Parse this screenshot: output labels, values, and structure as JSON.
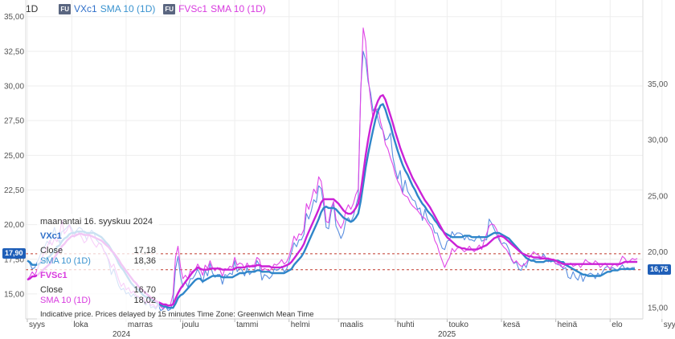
{
  "legend": {
    "interval": "1D",
    "badge": "FU",
    "s1_name": "VXc1",
    "s1_sma": "SMA 10 (1D)",
    "s2_name": "FVSc1",
    "s2_sma": "SMA 10 (1D)"
  },
  "colors": {
    "vx": "#5b8fe0",
    "vx_sma": "#2f86c9",
    "fvs": "#e046e6",
    "fvs_sma": "#cc22d6",
    "refline": "#c0392b",
    "pill_left": "#1f5fb8",
    "pill_right": "#1f5fb8"
  },
  "pills": {
    "left": "17,90",
    "right": "16,75"
  },
  "tooltip": {
    "date": "maanantai 16. syyskuu 2024",
    "s1_title": "VXc1",
    "close_label": "Close",
    "s1_close": "17,18",
    "s1_sma_label": "SMA 10 (1D)",
    "s1_sma": "18,36",
    "s2_title": "FVSc1",
    "s2_close": "16,70",
    "s2_sma_label": "SMA 10 (1D)",
    "s2_sma": "18,02"
  },
  "footer": {
    "note": "Indicative price. Prices delayed by 15 minutes   Time Zone: Greenwich Mean Time",
    "year1": "2024",
    "year2": "2025"
  },
  "chart_data": {
    "type": "line",
    "left_axis": {
      "ylim": [
        13.2,
        36.2
      ],
      "ticks": [
        "15,00",
        "17,50",
        "20,00",
        "22,50",
        "25,00",
        "27,50",
        "30,00",
        "32,50",
        "35,00"
      ],
      "tick_values": [
        15,
        17.5,
        20,
        22.5,
        25,
        27.5,
        30,
        32.5,
        35
      ]
    },
    "right_axis": {
      "ylim": [
        14.0,
        42.5
      ],
      "ticks": [
        "15,00",
        "20,00",
        "25,00",
        "30,00",
        "35,00"
      ],
      "tick_values": [
        15,
        20,
        25,
        30,
        35
      ]
    },
    "x_ticks": [
      "syys",
      "loka",
      "marras",
      "joulu",
      "tammi",
      "helmi",
      "maalis",
      "huhti",
      "touko",
      "kesä",
      "heinä",
      "elo",
      "syys"
    ],
    "x_tick_index": [
      0,
      18,
      40,
      62,
      84,
      106,
      126,
      149,
      170,
      192,
      214,
      236,
      257
    ],
    "ref_lines": [
      17.9,
      16.75
    ],
    "series": [
      {
        "name": "VXc1",
        "axis": "left",
        "values": [
          17.4,
          17.2,
          16.8,
          16.9,
          17.3,
          17.7,
          18.2,
          18.4,
          18.8,
          18.6,
          19.2,
          19.8,
          19.1,
          18.7,
          19.5,
          19.6,
          19.8,
          20.0,
          19.7,
          19.3,
          19.6,
          19.8,
          19.7,
          19.4,
          18.9,
          19.3,
          19.6,
          19.4,
          18.9,
          18.7,
          18.6,
          18.1,
          17.9,
          17.3,
          16.4,
          16.8,
          16.2,
          15.6,
          15.3,
          15.4,
          15.0,
          15.1,
          14.8,
          15.0,
          14.7,
          14.8,
          14.6,
          14.5,
          14.2,
          14.5,
          14.0,
          14.1,
          13.9,
          14.2,
          13.8,
          13.9,
          14.1,
          13.8,
          13.9,
          14.4,
          16.8,
          17.7,
          16.3,
          15.5,
          15.9,
          15.5,
          16.1,
          16.1,
          16.4,
          16.8,
          16.4,
          15.8,
          16.7,
          16.3,
          17.2,
          16.5,
          16.2,
          16.4,
          16.4,
          15.7,
          16.4,
          16.3,
          16.5,
          16.4,
          17.4,
          16.6,
          16.9,
          16.7,
          16.3,
          16.9,
          16.4,
          16.6,
          16.7,
          17.4,
          17.1,
          16.0,
          16.4,
          16.3,
          16.1,
          16.3,
          16.8,
          16.7,
          16.8,
          17.0,
          16.6,
          16.8,
          17.4,
          18.0,
          18.7,
          18.4,
          18.9,
          18.9,
          19.3,
          20.8,
          20.4,
          21.0,
          21.8,
          21.6,
          22.8,
          22.6,
          21.4,
          19.8,
          19.7,
          20.9,
          21.5,
          19.9,
          19.5,
          19.0,
          19.4,
          20.3,
          20.5,
          20.2,
          20.6,
          21.3,
          22.0,
          29.8,
          32.5,
          31.9,
          30.3,
          29.5,
          28.2,
          28.5,
          27.6,
          27.0,
          26.8,
          26.1,
          26.2,
          26.6,
          24.9,
          24.0,
          23.3,
          23.9,
          22.3,
          23.2,
          22.4,
          22.1,
          21.8,
          21.7,
          21.1,
          21.2,
          20.3,
          21.1,
          20.4,
          20.1,
          20.0,
          19.4,
          19.4,
          18.8,
          18.3,
          18.2,
          18.8,
          18.9,
          19.5,
          19.2,
          19.4,
          19.4,
          19.3,
          18.9,
          19.2,
          18.9,
          18.9,
          18.8,
          19.1,
          19.2,
          18.8,
          18.9,
          18.9,
          20.4,
          20.1,
          19.7,
          19.3,
          18.9,
          18.6,
          18.7,
          18.6,
          18.2,
          17.5,
          17.2,
          17.3,
          16.8,
          16.7,
          17.2,
          16.9,
          17.5,
          17.4,
          17.5,
          17.5,
          17.5,
          17.5,
          17.9,
          17.6,
          17.5,
          17.3,
          17.4,
          17.2,
          17.1,
          17.1,
          16.8,
          16.9,
          16.2,
          16.1,
          16.6,
          16.2,
          16.0,
          16.5,
          15.9,
          16.3,
          16.4,
          16.5,
          16.4,
          16.1,
          16.5,
          16.3,
          16.6,
          16.9,
          17.0,
          16.8,
          16.9,
          16.8,
          16.7,
          16.9,
          17.1,
          16.8,
          16.9,
          16.8,
          16.9,
          16.9
        ]
      },
      {
        "name": "SMA 10 (1D)",
        "axis": "left",
        "values": [
          17.4,
          17.3,
          17.1,
          17.1,
          17.1,
          17.2,
          17.3,
          17.4,
          17.6,
          17.7,
          17.9,
          18.1,
          18.4,
          18.5,
          18.8,
          19.0,
          19.1,
          19.3,
          19.4,
          19.4,
          19.5,
          19.5,
          19.5,
          19.5,
          19.4,
          19.4,
          19.4,
          19.4,
          19.3,
          19.2,
          19.1,
          18.9,
          18.7,
          18.5,
          18.2,
          17.9,
          17.6,
          17.2,
          16.9,
          16.7,
          16.4,
          16.1,
          15.8,
          15.6,
          15.4,
          15.3,
          15.1,
          14.9,
          14.8,
          14.7,
          14.6,
          14.5,
          14.4,
          14.3,
          14.2,
          14.1,
          14.1,
          14.0,
          14.0,
          14.0,
          14.3,
          14.7,
          14.9,
          15.0,
          15.2,
          15.4,
          15.6,
          15.8,
          16.0,
          16.1,
          16.1,
          15.9,
          16.0,
          16.1,
          16.2,
          16.3,
          16.3,
          16.3,
          16.3,
          16.2,
          16.2,
          16.2,
          16.2,
          16.2,
          16.3,
          16.4,
          16.5,
          16.5,
          16.5,
          16.6,
          16.6,
          16.6,
          16.6,
          16.7,
          16.7,
          16.6,
          16.6,
          16.6,
          16.6,
          16.5,
          16.5,
          16.5,
          16.5,
          16.5,
          16.5,
          16.6,
          16.7,
          16.8,
          17.1,
          17.3,
          17.5,
          17.7,
          18.0,
          18.4,
          18.8,
          19.2,
          19.6,
          20.0,
          20.4,
          20.9,
          21.2,
          21.3,
          21.2,
          21.2,
          21.2,
          21.1,
          20.9,
          20.7,
          20.5,
          20.4,
          20.3,
          20.2,
          20.3,
          20.5,
          20.8,
          21.7,
          22.9,
          24.1,
          25.1,
          26.0,
          26.8,
          27.6,
          28.2,
          28.6,
          28.7,
          28.3,
          27.7,
          27.2,
          26.5,
          25.9,
          25.3,
          24.8,
          24.3,
          23.9,
          23.6,
          23.2,
          22.8,
          22.5,
          22.1,
          21.8,
          21.5,
          21.3,
          21.0,
          20.8,
          20.6,
          20.3,
          20.1,
          19.8,
          19.6,
          19.4,
          19.3,
          19.2,
          19.1,
          19.1,
          19.1,
          19.1,
          19.1,
          19.2,
          19.2,
          19.2,
          19.1,
          19.1,
          19.1,
          19.1,
          19.1,
          19.1,
          19.1,
          19.2,
          19.3,
          19.4,
          19.4,
          19.4,
          19.3,
          19.2,
          19.1,
          19.0,
          18.8,
          18.6,
          18.4,
          18.2,
          18.0,
          17.8,
          17.6,
          17.5,
          17.4,
          17.4,
          17.3,
          17.3,
          17.3,
          17.3,
          17.4,
          17.4,
          17.4,
          17.4,
          17.4,
          17.4,
          17.3,
          17.3,
          17.1,
          17.0,
          16.9,
          16.8,
          16.7,
          16.6,
          16.5,
          16.4,
          16.4,
          16.3,
          16.3,
          16.3,
          16.3,
          16.3,
          16.3,
          16.4,
          16.5,
          16.6,
          16.6,
          16.7,
          16.7,
          16.7,
          16.8,
          16.8,
          16.8,
          16.8,
          16.8,
          16.8,
          16.8
        ]
      },
      {
        "name": "FVSc1",
        "axis": "right",
        "values": [
          17.5,
          17.8,
          18.2,
          17.9,
          18.4,
          19.0,
          19.5,
          20.0,
          20.4,
          21.0,
          20.6,
          21.2,
          20.9,
          21.5,
          22.8,
          21.6,
          21.9,
          22.4,
          21.7,
          21.3,
          21.8,
          21.7,
          21.3,
          20.8,
          21.0,
          21.6,
          21.1,
          20.7,
          20.4,
          20.8,
          20.6,
          20.1,
          19.7,
          19.3,
          18.6,
          18.9,
          18.2,
          17.5,
          16.9,
          17.2,
          16.6,
          16.8,
          16.3,
          16.5,
          16.1,
          16.0,
          15.7,
          15.9,
          15.4,
          15.6,
          15.2,
          15.3,
          15.0,
          15.4,
          15.1,
          14.9,
          15.3,
          15.1,
          15.3,
          16.2,
          19.5,
          20.5,
          18.7,
          17.6,
          17.9,
          17.6,
          18.3,
          18.1,
          18.4,
          18.9,
          18.5,
          17.9,
          18.8,
          18.5,
          19.2,
          18.6,
          18.3,
          18.6,
          18.4,
          17.8,
          18.5,
          18.4,
          18.7,
          18.6,
          19.5,
          18.8,
          19.0,
          18.9,
          18.5,
          19.0,
          18.6,
          18.8,
          18.8,
          19.5,
          19.3,
          18.3,
          18.5,
          18.4,
          18.3,
          18.5,
          18.9,
          18.8,
          19.0,
          19.3,
          18.9,
          19.1,
          19.6,
          20.4,
          21.4,
          21.0,
          21.6,
          21.5,
          22.0,
          24.3,
          23.8,
          24.6,
          25.6,
          25.2,
          26.7,
          26.3,
          24.8,
          22.7,
          22.6,
          23.9,
          24.5,
          22.9,
          22.5,
          22.1,
          22.6,
          23.7,
          24.2,
          23.8,
          24.3,
          25.1,
          25.6,
          34.2,
          40.0,
          38.8,
          35.6,
          33.6,
          31.9,
          32.6,
          32.8,
          31.6,
          30.8,
          29.6,
          29.2,
          28.4,
          27.8,
          26.9,
          26.3,
          25.9,
          25.2,
          25.0,
          24.9,
          24.4,
          24.1,
          23.9,
          23.7,
          23.4,
          23.1,
          23.0,
          22.6,
          22.3,
          21.9,
          21.0,
          20.6,
          19.8,
          19.2,
          18.6,
          19.1,
          19.5,
          20.3,
          20.0,
          20.3,
          20.4,
          20.2,
          20.0,
          20.2,
          20.5,
          20.2,
          20.0,
          20.3,
          20.6,
          20.2,
          21.0,
          21.6,
          22.3,
          22.5,
          22.4,
          22.0,
          21.3,
          20.7,
          20.4,
          20.2,
          19.8,
          19.4,
          19.0,
          19.2,
          18.9,
          18.7,
          18.8,
          19.0,
          19.4,
          19.7,
          20.0,
          19.8,
          19.7,
          19.5,
          19.6,
          19.3,
          19.1,
          19.4,
          19.2,
          18.9,
          19.0,
          18.7,
          18.6,
          18.9,
          18.8,
          19.0,
          18.7,
          18.8,
          18.9,
          18.6,
          18.9,
          19.3,
          19.1,
          19.0,
          18.9,
          19.2,
          19.0,
          18.6,
          18.8,
          19.0,
          18.7,
          18.5,
          18.8,
          18.9,
          18.7,
          19.1,
          19.6,
          19.4,
          19.0,
          19.2,
          19.4,
          19.3,
          19.4
        ]
      },
      {
        "name": "SMA 10 (1D)",
        "axis": "right",
        "values": [
          17.5,
          17.6,
          17.8,
          17.8,
          17.9,
          18.1,
          18.3,
          18.5,
          18.7,
          18.9,
          19.2,
          19.5,
          19.8,
          20.1,
          20.5,
          20.7,
          21.0,
          21.2,
          21.4,
          21.4,
          21.5,
          21.6,
          21.6,
          21.5,
          21.5,
          21.5,
          21.4,
          21.3,
          21.2,
          21.1,
          21.0,
          20.8,
          20.6,
          20.4,
          20.1,
          19.9,
          19.6,
          19.3,
          18.9,
          18.6,
          18.3,
          18.0,
          17.7,
          17.4,
          17.2,
          16.9,
          16.7,
          16.5,
          16.3,
          16.1,
          15.9,
          15.8,
          15.6,
          15.5,
          15.4,
          15.3,
          15.3,
          15.2,
          15.2,
          15.3,
          15.8,
          16.3,
          16.7,
          17.0,
          17.3,
          17.6,
          17.9,
          18.2,
          18.4,
          18.6,
          18.5,
          18.4,
          18.4,
          18.4,
          18.5,
          18.5,
          18.5,
          18.5,
          18.5,
          18.4,
          18.4,
          18.4,
          18.4,
          18.4,
          18.5,
          18.6,
          18.6,
          18.6,
          18.6,
          18.7,
          18.7,
          18.7,
          18.7,
          18.8,
          18.8,
          18.7,
          18.7,
          18.7,
          18.7,
          18.6,
          18.6,
          18.6,
          18.6,
          18.6,
          18.7,
          18.8,
          18.9,
          19.1,
          19.4,
          19.7,
          20.0,
          20.3,
          20.7,
          21.3,
          21.8,
          22.3,
          22.8,
          23.3,
          23.8,
          24.4,
          24.7,
          24.7,
          24.7,
          24.7,
          24.7,
          24.5,
          24.3,
          24.0,
          23.7,
          23.5,
          23.4,
          23.4,
          23.6,
          23.9,
          24.3,
          25.4,
          27.0,
          28.6,
          30.0,
          31.2,
          32.1,
          32.9,
          33.5,
          33.9,
          34.0,
          33.6,
          32.9,
          32.2,
          31.5,
          30.7,
          30.0,
          29.3,
          28.7,
          28.1,
          27.6,
          27.1,
          26.6,
          26.2,
          25.8,
          25.4,
          25.0,
          24.6,
          24.3,
          24.0,
          23.6,
          23.2,
          22.8,
          22.4,
          22.0,
          21.6,
          21.3,
          21.1,
          20.9,
          20.7,
          20.5,
          20.4,
          20.3,
          20.3,
          20.2,
          20.2,
          20.2,
          20.2,
          20.2,
          20.3,
          20.4,
          20.5,
          20.6,
          20.8,
          21.0,
          21.2,
          21.3,
          21.4,
          21.4,
          21.3,
          21.1,
          20.9,
          20.7,
          20.5,
          20.3,
          20.1,
          19.9,
          19.8,
          19.7,
          19.6,
          19.6,
          19.5,
          19.5,
          19.5,
          19.4,
          19.4,
          19.4,
          19.4,
          19.3,
          19.3,
          19.2,
          19.1,
          19.0,
          18.9,
          18.9,
          18.9,
          18.9,
          18.9,
          18.9,
          18.9,
          18.9,
          18.9,
          18.9,
          18.9,
          18.9,
          18.9,
          18.9,
          18.9,
          18.9,
          18.9,
          18.9,
          18.9,
          18.9,
          18.9,
          18.9,
          18.9,
          18.9,
          19.0,
          19.1,
          19.1,
          19.1,
          19.1,
          19.1,
          19.1
        ]
      }
    ]
  }
}
